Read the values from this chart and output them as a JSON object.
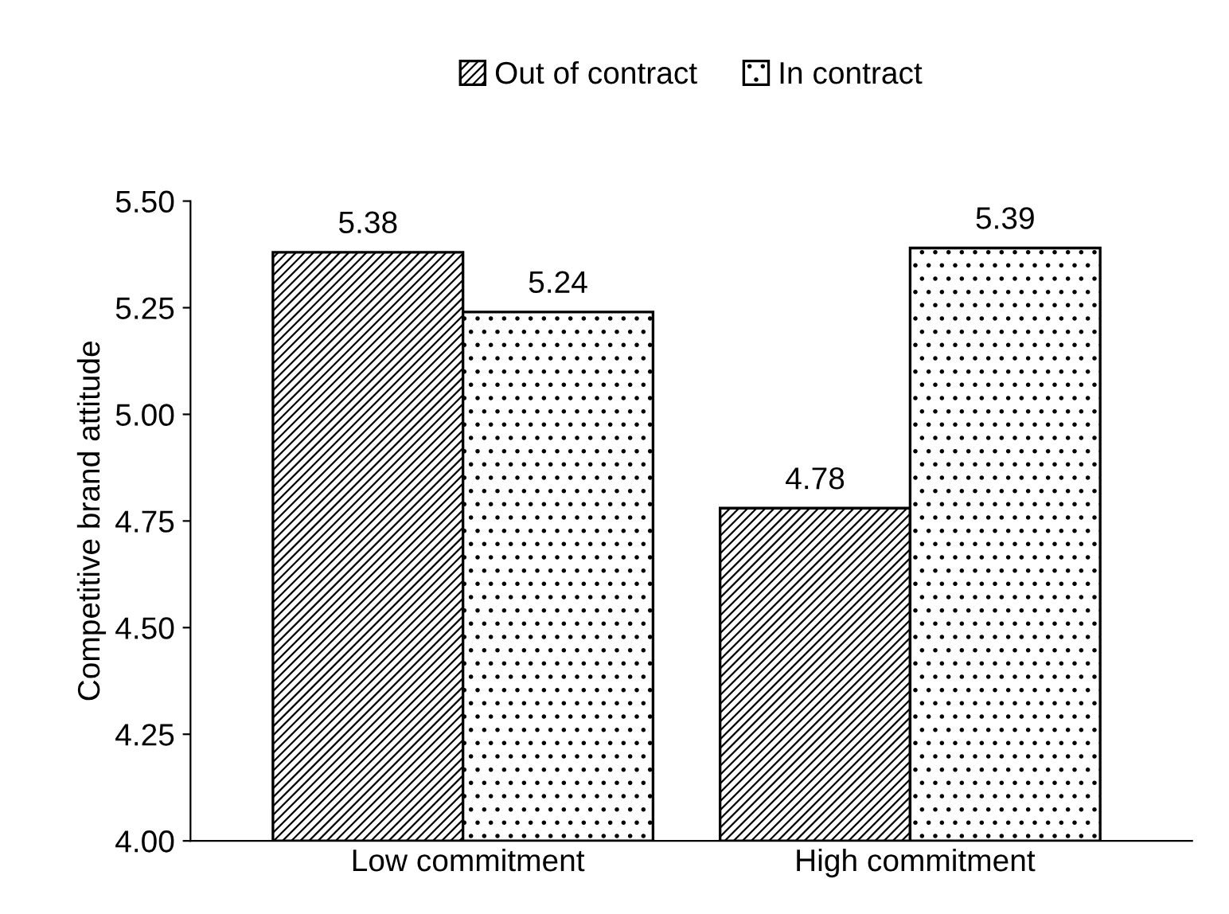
{
  "chart_data": {
    "type": "bar",
    "ylabel": "Competitive brand attitude",
    "categories": [
      "Low commitment",
      "High commitment"
    ],
    "series": [
      {
        "name": "Out of contract",
        "color": "#000000",
        "values": [
          5.38,
          4.78
        ]
      },
      {
        "name": "In contract",
        "color": "#000000",
        "values": [
          5.24,
          5.39
        ]
      }
    ],
    "ylim": [
      4.0,
      5.5
    ],
    "yticks": [
      {
        "value": 4.0,
        "label": "4.00"
      },
      {
        "value": 4.25,
        "label": "4.25"
      },
      {
        "value": 4.5,
        "label": "4.50"
      },
      {
        "value": 4.75,
        "label": "4.75"
      },
      {
        "value": 5.0,
        "label": "5.00"
      },
      {
        "value": 5.25,
        "label": "5.25"
      },
      {
        "value": 5.5,
        "label": "5.50"
      }
    ],
    "data_labels": true,
    "legend": "top",
    "grid": false
  }
}
